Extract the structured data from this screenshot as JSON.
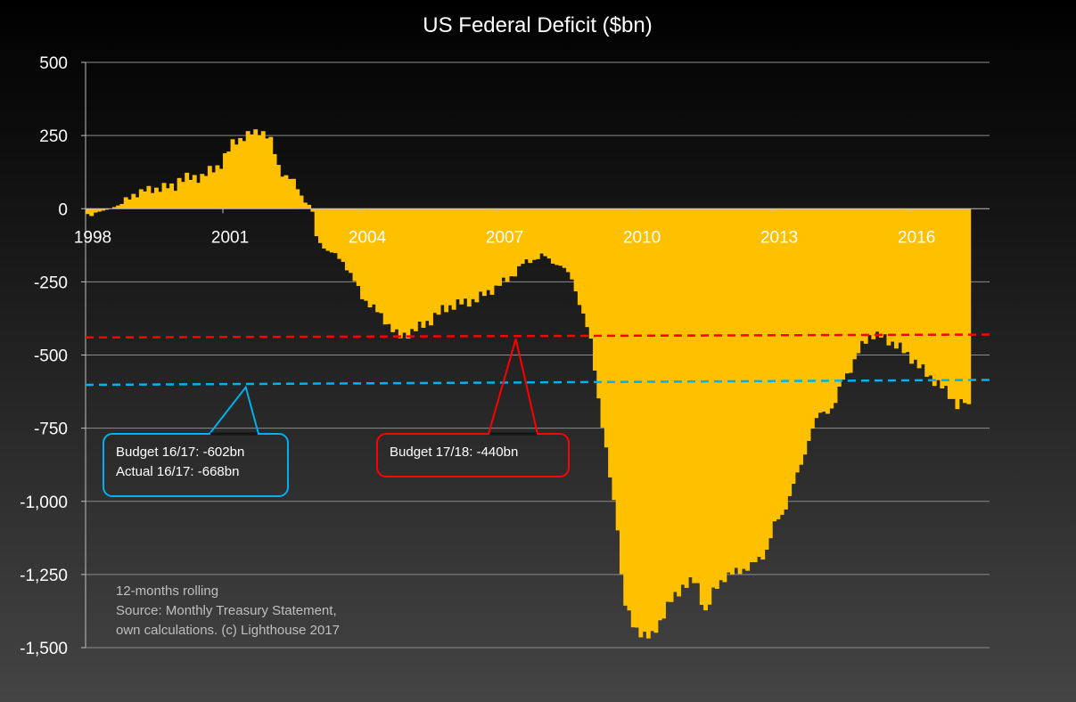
{
  "chart_data": {
    "type": "area",
    "title": "US Federal Deficit ($bn)",
    "xlabel": "",
    "ylabel": "",
    "ylim": [
      -1500,
      500
    ],
    "xlim": [
      1998.0,
      2017.75
    ],
    "y_ticks": [
      500,
      250,
      0,
      -250,
      -500,
      -750,
      -1000,
      -1250,
      -1500
    ],
    "y_tick_labels": [
      "500",
      "250",
      "0",
      "-250",
      "-500",
      "-750",
      "-1,000",
      "-1,250",
      "-1,500"
    ],
    "x_ticks": [
      1998,
      2001,
      2004,
      2007,
      2010,
      2013,
      2016
    ],
    "x_tick_labels": [
      "1998",
      "2001",
      "2004",
      "2007",
      "2010",
      "2013",
      "2016"
    ],
    "grid": "horizontal",
    "fill_color": "#ffc000",
    "series": [
      {
        "name": "",
        "points": [
          [
            1998.0,
            -20
          ],
          [
            1998.5,
            0
          ],
          [
            1998.8,
            20
          ],
          [
            1999.0,
            50
          ],
          [
            1999.5,
            70
          ],
          [
            1999.9,
            75
          ],
          [
            2000.0,
            100
          ],
          [
            2000.5,
            110
          ],
          [
            2000.9,
            150
          ],
          [
            2001.2,
            230
          ],
          [
            2001.5,
            250
          ],
          [
            2001.8,
            270
          ],
          [
            2002.0,
            230
          ],
          [
            2002.2,
            130
          ],
          [
            2002.5,
            90
          ],
          [
            2002.7,
            40
          ],
          [
            2002.9,
            0
          ],
          [
            2003.0,
            -100
          ],
          [
            2003.3,
            -150
          ],
          [
            2003.6,
            -180
          ],
          [
            2004.0,
            -300
          ],
          [
            2004.5,
            -380
          ],
          [
            2004.8,
            -440
          ],
          [
            2005.2,
            -410
          ],
          [
            2005.5,
            -380
          ],
          [
            2005.8,
            -340
          ],
          [
            2006.0,
            -330
          ],
          [
            2006.5,
            -310
          ],
          [
            2006.9,
            -270
          ],
          [
            2007.2,
            -240
          ],
          [
            2007.5,
            -190
          ],
          [
            2007.9,
            -160
          ],
          [
            2008.3,
            -190
          ],
          [
            2008.6,
            -240
          ],
          [
            2008.8,
            -350
          ],
          [
            2009.0,
            -450
          ],
          [
            2009.1,
            -560
          ],
          [
            2009.2,
            -690
          ],
          [
            2009.4,
            -900
          ],
          [
            2009.6,
            -1100
          ],
          [
            2009.7,
            -1330
          ],
          [
            2009.9,
            -1420
          ],
          [
            2010.1,
            -1450
          ],
          [
            2010.3,
            -1470
          ],
          [
            2010.5,
            -1410
          ],
          [
            2010.7,
            -1350
          ],
          [
            2011.0,
            -1290
          ],
          [
            2011.3,
            -1270
          ],
          [
            2011.5,
            -1380
          ],
          [
            2011.7,
            -1300
          ],
          [
            2011.9,
            -1260
          ],
          [
            2012.2,
            -1240
          ],
          [
            2012.5,
            -1220
          ],
          [
            2012.8,
            -1180
          ],
          [
            2013.0,
            -1080
          ],
          [
            2013.2,
            -1040
          ],
          [
            2013.4,
            -950
          ],
          [
            2013.6,
            -870
          ],
          [
            2013.8,
            -760
          ],
          [
            2014.0,
            -700
          ],
          [
            2014.3,
            -680
          ],
          [
            2014.5,
            -580
          ],
          [
            2014.7,
            -540
          ],
          [
            2014.9,
            -470
          ],
          [
            2015.1,
            -430
          ],
          [
            2015.4,
            -440
          ],
          [
            2015.7,
            -470
          ],
          [
            2016.0,
            -510
          ],
          [
            2016.3,
            -560
          ],
          [
            2016.6,
            -600
          ],
          [
            2016.8,
            -630
          ],
          [
            2017.0,
            -670
          ],
          [
            2017.2,
            -660
          ],
          [
            2017.25,
            -680
          ],
          [
            2017.3,
            0
          ]
        ]
      }
    ],
    "reference_lines": [
      {
        "color": "#ff0000",
        "x1": 1998.0,
        "y1": -440,
        "x2": 2017.75,
        "y2": -430
      },
      {
        "color": "#00b0f0",
        "x1": 1998.0,
        "y1": -602,
        "x2": 2017.75,
        "y2": -585
      }
    ],
    "callouts": [
      {
        "color": "#00b0f0",
        "lines": [
          "Budget 16/17: -602bn",
          "Actual 16/17: -668bn"
        ],
        "point": [
          2001.5,
          -610
        ]
      },
      {
        "color": "#ff0000",
        "lines": [
          "Budget 17/18: -440bn"
        ],
        "point": [
          2007.4,
          -445
        ]
      }
    ],
    "annotations": [
      "12-months rolling",
      "Source: Monthly Treasury Statement,",
      "own calculations. (c) Lighthouse 2017"
    ]
  }
}
